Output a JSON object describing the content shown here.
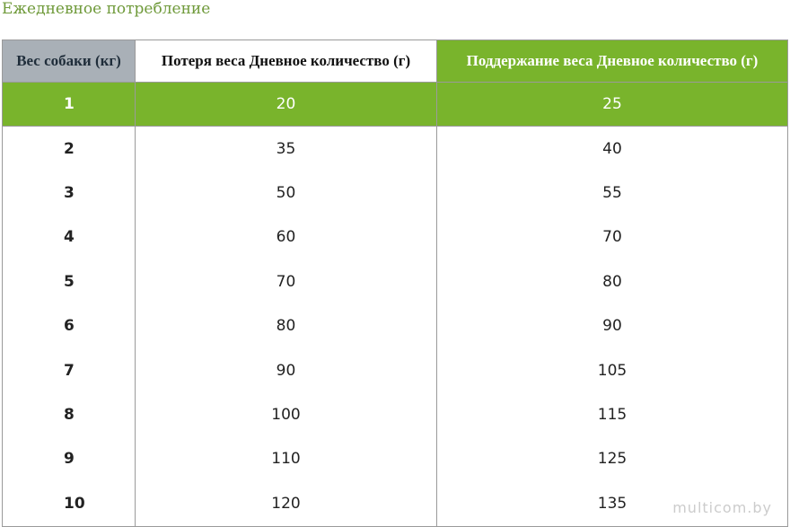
{
  "caption": "Ежедневное потребление",
  "table": {
    "headers": [
      "Вес собаки (кг)",
      "Потеря веса Дневное количество (г)",
      "Поддержание веса Дневное количество (г)"
    ],
    "rows": [
      [
        "1",
        "20",
        "25"
      ],
      [
        "2",
        "35",
        "40"
      ],
      [
        "3",
        "50",
        "55"
      ],
      [
        "4",
        "60",
        "70"
      ],
      [
        "5",
        "70",
        "80"
      ],
      [
        "6",
        "80",
        "90"
      ],
      [
        "7",
        "90",
        "105"
      ],
      [
        "8",
        "100",
        "115"
      ],
      [
        "9",
        "110",
        "125"
      ],
      [
        "10",
        "120",
        "135"
      ]
    ]
  },
  "watermark": "multicom.by",
  "colors": {
    "accent": "#79b42c",
    "caption": "#6f9a3a",
    "header_gray": "#a9b0b7",
    "border": "#9a9a9a"
  }
}
